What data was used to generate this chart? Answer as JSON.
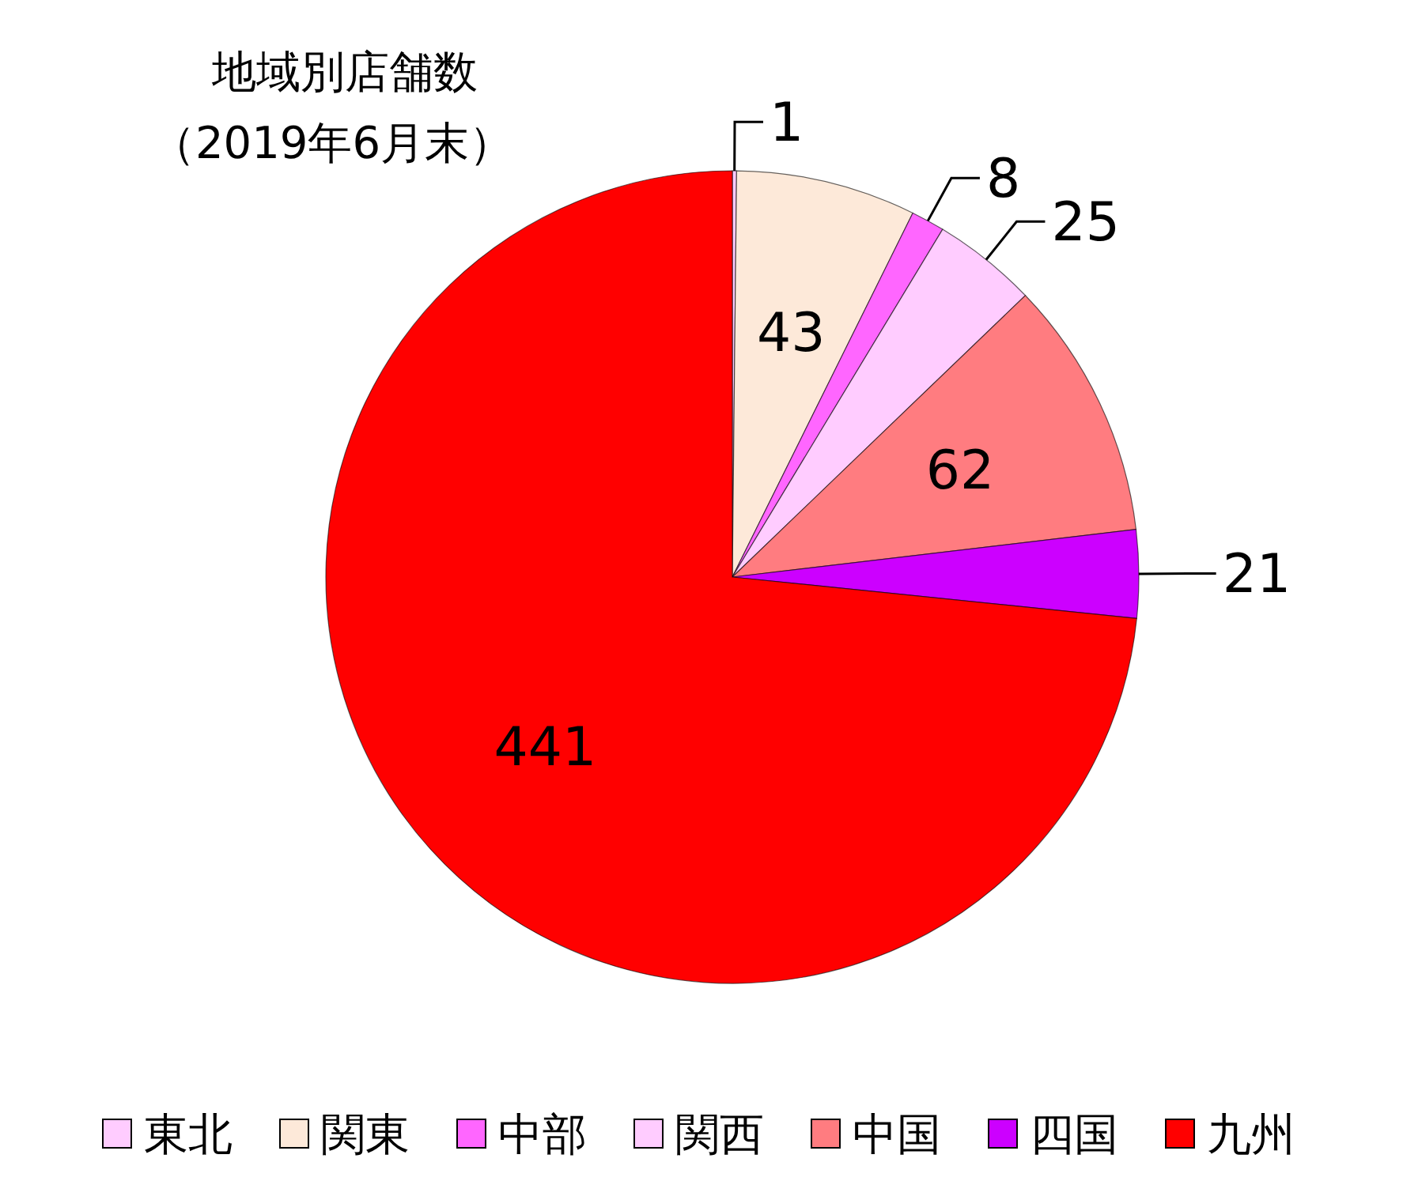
{
  "chart_data": {
    "type": "pie",
    "title": "地域別店舗数",
    "subtitle": "（2019年6月末）",
    "categories": [
      "東北",
      "関東",
      "中部",
      "関西",
      "中国",
      "四国",
      "九州"
    ],
    "values": [
      1,
      43,
      8,
      25,
      62,
      21,
      441
    ],
    "colors": [
      "#ffccff",
      "#fde9d9",
      "#ff66ff",
      "#ffccff",
      "#ff7c80",
      "#cc00ff",
      "#ff0000"
    ],
    "data_labels": true,
    "legend": "bottom"
  }
}
